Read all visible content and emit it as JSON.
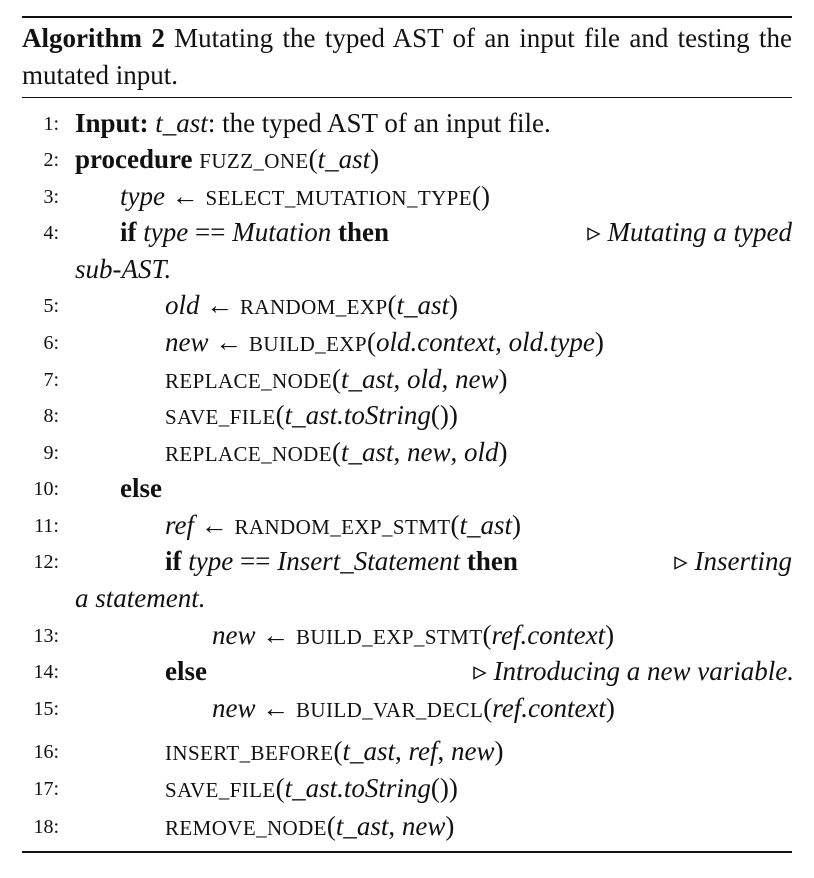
{
  "caption": {
    "label": "Algorithm 2",
    "text": "Mutating the typed AST of an input file and testing the mutated input."
  },
  "lines": [
    {
      "num": "1:",
      "code": [
        {
          "t": "Input:",
          "c": "kw"
        },
        {
          "t": " "
        },
        {
          "t": "t_ast",
          "c": "var"
        },
        {
          "t": ": the typed AST of an input file."
        }
      ]
    },
    {
      "num": "2:",
      "code": [
        {
          "t": "procedure",
          "c": "kw"
        },
        {
          "t": " "
        },
        {
          "t": "FUZZ_ONE",
          "c": "fn"
        },
        {
          "t": "("
        },
        {
          "t": "t_ast",
          "c": "var"
        },
        {
          "t": ")"
        }
      ]
    },
    {
      "num": "3:",
      "code": [
        {
          "t": "type",
          "c": "var"
        },
        {
          "t": " ← "
        },
        {
          "t": "SELECT_MUTATION_TYPE",
          "c": "fn"
        },
        {
          "t": "()"
        }
      ]
    },
    {
      "num": "4:",
      "code": [
        {
          "t": "if",
          "c": "kw"
        },
        {
          "t": " "
        },
        {
          "t": "type",
          "c": "var"
        },
        {
          "t": " == "
        },
        {
          "t": "Mutation",
          "c": "var"
        },
        {
          "t": " "
        },
        {
          "t": "then",
          "c": "kw"
        }
      ],
      "comment": "▹ Mutating a typed",
      "cont": "sub-AST."
    },
    {
      "num": "5:",
      "code": [
        {
          "t": "old",
          "c": "var"
        },
        {
          "t": " ← "
        },
        {
          "t": "RANDOM_EXP",
          "c": "fn"
        },
        {
          "t": "("
        },
        {
          "t": "t_ast",
          "c": "var"
        },
        {
          "t": ")"
        }
      ]
    },
    {
      "num": "6:",
      "code": [
        {
          "t": "new",
          "c": "var"
        },
        {
          "t": " ← "
        },
        {
          "t": "BUILD_EXP",
          "c": "fn"
        },
        {
          "t": "("
        },
        {
          "t": "old.context",
          "c": "var"
        },
        {
          "t": ", "
        },
        {
          "t": "old.type",
          "c": "var"
        },
        {
          "t": ")"
        }
      ]
    },
    {
      "num": "7:",
      "code": [
        {
          "t": "REPLACE_NODE",
          "c": "fn"
        },
        {
          "t": "("
        },
        {
          "t": "t_ast",
          "c": "var"
        },
        {
          "t": ", "
        },
        {
          "t": "old",
          "c": "var"
        },
        {
          "t": ", "
        },
        {
          "t": "new",
          "c": "var"
        },
        {
          "t": ")"
        }
      ]
    },
    {
      "num": "8:",
      "code": [
        {
          "t": "SAVE_FILE",
          "c": "fn"
        },
        {
          "t": "("
        },
        {
          "t": "t_ast.toString",
          "c": "var"
        },
        {
          "t": "())"
        }
      ]
    },
    {
      "num": "9:",
      "code": [
        {
          "t": "REPLACE_NODE",
          "c": "fn"
        },
        {
          "t": "("
        },
        {
          "t": "t_ast",
          "c": "var"
        },
        {
          "t": ", "
        },
        {
          "t": "new",
          "c": "var"
        },
        {
          "t": ", "
        },
        {
          "t": "old",
          "c": "var"
        },
        {
          "t": ")"
        }
      ]
    },
    {
      "num": "10:",
      "code": [
        {
          "t": "else",
          "c": "kw"
        }
      ]
    },
    {
      "num": "11:",
      "code": [
        {
          "t": "ref",
          "c": "var"
        },
        {
          "t": " ← "
        },
        {
          "t": "RANDOM_EXP_STMT",
          "c": "fn"
        },
        {
          "t": "("
        },
        {
          "t": "t_ast",
          "c": "var"
        },
        {
          "t": ")"
        }
      ]
    },
    {
      "num": "12:",
      "code": [
        {
          "t": "if",
          "c": "kw"
        },
        {
          "t": " "
        },
        {
          "t": "type",
          "c": "var"
        },
        {
          "t": " == "
        },
        {
          "t": "Insert_Statement",
          "c": "var"
        },
        {
          "t": " "
        },
        {
          "t": "then",
          "c": "kw"
        }
      ],
      "comment": "▹ Inserting",
      "cont": "a statement."
    },
    {
      "num": "13:",
      "code": [
        {
          "t": "new",
          "c": "var"
        },
        {
          "t": " ← "
        },
        {
          "t": "BUILD_EXP_STMT",
          "c": "fn"
        },
        {
          "t": "("
        },
        {
          "t": "ref.context",
          "c": "var"
        },
        {
          "t": ")"
        }
      ]
    },
    {
      "num": "14:",
      "code": [
        {
          "t": "else",
          "c": "kw"
        }
      ],
      "comment": "▹ Introducing a new variable."
    },
    {
      "num": "15:",
      "code": [
        {
          "t": "new",
          "c": "var"
        },
        {
          "t": " ← "
        },
        {
          "t": "BUILD_VAR_DECL",
          "c": "fn"
        },
        {
          "t": "("
        },
        {
          "t": "ref.context",
          "c": "var"
        },
        {
          "t": ")"
        }
      ]
    },
    {
      "num": "16:",
      "code": [
        {
          "t": "INSERT_BEFORE",
          "c": "fn"
        },
        {
          "t": "("
        },
        {
          "t": "t_ast",
          "c": "var"
        },
        {
          "t": ", "
        },
        {
          "t": "ref",
          "c": "var"
        },
        {
          "t": ", "
        },
        {
          "t": "new",
          "c": "var"
        },
        {
          "t": ")"
        }
      ]
    },
    {
      "num": "17:",
      "code": [
        {
          "t": "SAVE_FILE",
          "c": "fn"
        },
        {
          "t": "("
        },
        {
          "t": "t_ast.toString",
          "c": "var"
        },
        {
          "t": "())"
        }
      ]
    },
    {
      "num": "18:",
      "code": [
        {
          "t": "REMOVE_NODE",
          "c": "fn"
        },
        {
          "t": "("
        },
        {
          "t": "t_ast",
          "c": "var"
        },
        {
          "t": ", "
        },
        {
          "t": "new",
          "c": "var"
        },
        {
          "t": ")"
        }
      ]
    }
  ]
}
